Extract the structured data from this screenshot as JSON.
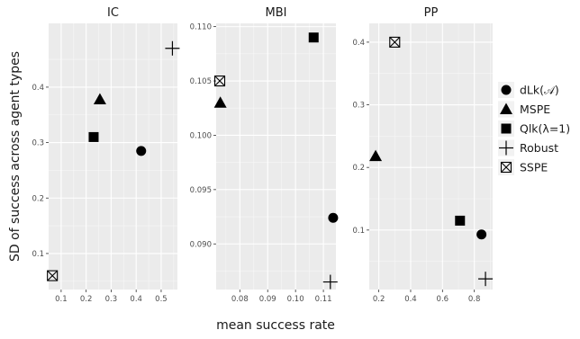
{
  "chart_data": {
    "type": "scatter",
    "xlabel": "mean success rate",
    "ylabel": "SD of success across agent types",
    "legend_position": "right",
    "grid": true,
    "shapes": {
      "dLk(𝒜)": "circle",
      "MSPE": "triangle",
      "Qlk(λ=1)": "square",
      "Robust": "plus",
      "SSPE": "boxcross"
    },
    "legend": [
      "dLk(𝒜)",
      "MSPE",
      "Qlk(λ=1)",
      "Robust",
      "SSPE"
    ],
    "panels": [
      {
        "title": "IC",
        "xlim": [
          0.05,
          0.565
        ],
        "ylim": [
          0.035,
          0.515
        ],
        "xticks": [
          {
            "v": 0.1,
            "label": "0.1"
          },
          {
            "v": 0.2,
            "label": "0.2"
          },
          {
            "v": 0.3,
            "label": "0.3"
          },
          {
            "v": 0.4,
            "label": "0.4"
          },
          {
            "v": 0.5,
            "label": "0.5"
          }
        ],
        "yticks": [
          {
            "v": 0.1,
            "label": "0.1"
          },
          {
            "v": 0.2,
            "label": "0.2"
          },
          {
            "v": 0.3,
            "label": "0.3"
          },
          {
            "v": 0.4,
            "label": "0.4"
          }
        ],
        "points": [
          {
            "series": "dLk(𝒜)",
            "x": 0.42,
            "y": 0.285
          },
          {
            "series": "MSPE",
            "x": 0.255,
            "y": 0.378
          },
          {
            "series": "Qlk(λ=1)",
            "x": 0.23,
            "y": 0.31
          },
          {
            "series": "Robust",
            "x": 0.545,
            "y": 0.47
          },
          {
            "series": "SSPE",
            "x": 0.065,
            "y": 0.06
          }
        ]
      },
      {
        "title": "MBI",
        "xlim": [
          0.0715,
          0.1145
        ],
        "ylim": [
          0.0858,
          0.1103
        ],
        "xticks": [
          {
            "v": 0.08,
            "label": "0.08"
          },
          {
            "v": 0.09,
            "label": "0.09"
          },
          {
            "v": 0.1,
            "label": "0.10"
          },
          {
            "v": 0.11,
            "label": "0.11"
          }
        ],
        "yticks": [
          {
            "v": 0.09,
            "label": "0.090"
          },
          {
            "v": 0.095,
            "label": "0.095"
          },
          {
            "v": 0.1,
            "label": "0.100"
          },
          {
            "v": 0.105,
            "label": "0.105"
          },
          {
            "v": 0.11,
            "label": "0.110"
          }
        ],
        "points": [
          {
            "series": "dLk(𝒜)",
            "x": 0.1135,
            "y": 0.0924
          },
          {
            "series": "MSPE",
            "x": 0.073,
            "y": 0.103
          },
          {
            "series": "Qlk(λ=1)",
            "x": 0.1065,
            "y": 0.109
          },
          {
            "series": "Robust",
            "x": 0.1125,
            "y": 0.0865
          },
          {
            "series": "SSPE",
            "x": 0.0728,
            "y": 0.105
          }
        ]
      },
      {
        "title": "PP",
        "xlim": [
          0.14,
          0.915
        ],
        "ylim": [
          0.005,
          0.43
        ],
        "xticks": [
          {
            "v": 0.2,
            "label": "0.2"
          },
          {
            "v": 0.4,
            "label": "0.4"
          },
          {
            "v": 0.6,
            "label": "0.6"
          },
          {
            "v": 0.8,
            "label": "0.8"
          }
        ],
        "yticks": [
          {
            "v": 0.1,
            "label": "0.1"
          },
          {
            "v": 0.2,
            "label": "0.2"
          },
          {
            "v": 0.3,
            "label": "0.3"
          },
          {
            "v": 0.4,
            "label": "0.4"
          }
        ],
        "points": [
          {
            "series": "dLk(𝒜)",
            "x": 0.845,
            "y": 0.093
          },
          {
            "series": "MSPE",
            "x": 0.18,
            "y": 0.218
          },
          {
            "series": "Qlk(λ=1)",
            "x": 0.71,
            "y": 0.115
          },
          {
            "series": "Robust",
            "x": 0.87,
            "y": 0.022
          },
          {
            "series": "SSPE",
            "x": 0.3,
            "y": 0.4
          }
        ]
      }
    ]
  }
}
